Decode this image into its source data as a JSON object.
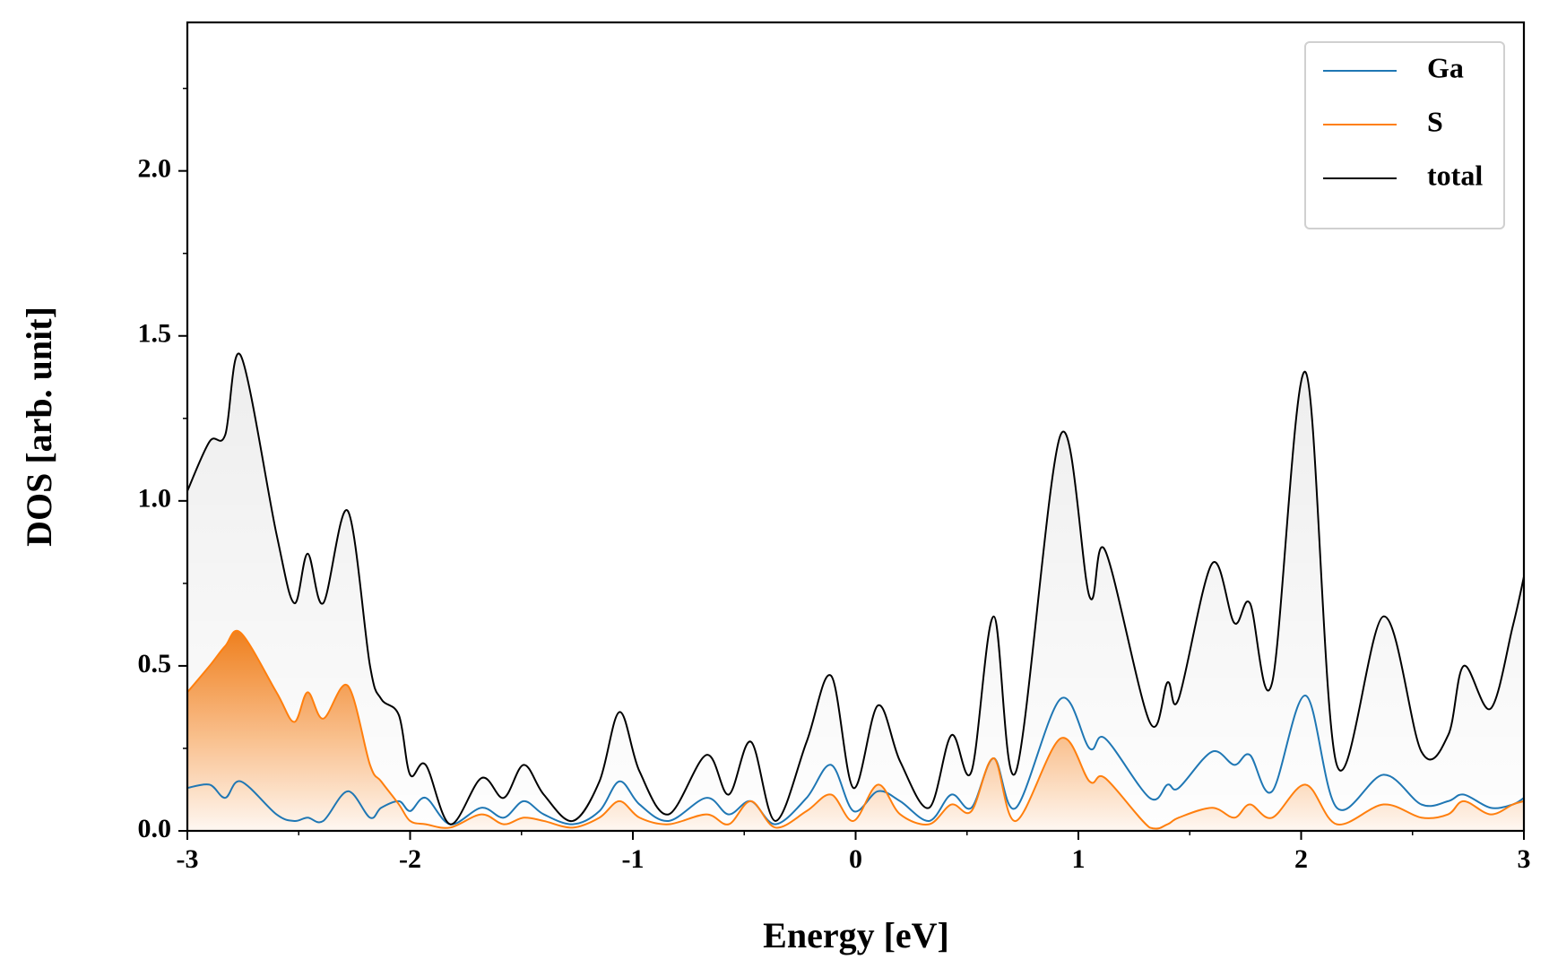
{
  "chart_data": {
    "type": "line",
    "x_label": "Energy [eV]",
    "y_label": "DOS [arb. unit]",
    "x": [
      -3,
      -2.9,
      -2.83,
      -2.76,
      -2.6,
      -2.52,
      -2.46,
      -2.39,
      -2.28,
      -2.18,
      -2.13,
      -2.05,
      -2.0,
      -1.93,
      -1.82,
      -1.68,
      -1.58,
      -1.49,
      -1.4,
      -1.27,
      -1.15,
      -1.06,
      -0.97,
      -0.84,
      -0.67,
      -0.57,
      -0.47,
      -0.36,
      -0.22,
      -0.11,
      -0.01,
      0.1,
      0.2,
      0.33,
      0.43,
      0.52,
      0.62,
      0.72,
      0.92,
      1.05,
      1.12,
      1.32,
      1.4,
      1.45,
      1.6,
      1.7,
      1.77,
      1.87,
      2.02,
      2.16,
      2.37,
      2.54,
      2.66,
      2.73,
      2.85,
      2.95,
      3
    ],
    "series": [
      {
        "name": "Ga",
        "color": "#1f77b4",
        "fill": false,
        "values": [
          0.13,
          0.14,
          0.1,
          0.15,
          0.05,
          0.03,
          0.04,
          0.03,
          0.12,
          0.04,
          0.07,
          0.09,
          0.06,
          0.1,
          0.02,
          0.07,
          0.04,
          0.09,
          0.05,
          0.02,
          0.06,
          0.15,
          0.08,
          0.03,
          0.1,
          0.05,
          0.09,
          0.02,
          0.1,
          0.2,
          0.06,
          0.12,
          0.09,
          0.03,
          0.11,
          0.07,
          0.22,
          0.07,
          0.4,
          0.25,
          0.28,
          0.1,
          0.14,
          0.13,
          0.24,
          0.2,
          0.23,
          0.12,
          0.41,
          0.07,
          0.17,
          0.08,
          0.09,
          0.11,
          0.07,
          0.08,
          0.1
        ]
      },
      {
        "name": "S",
        "color": "#ff7f0e",
        "fill": true,
        "values": [
          0.42,
          0.5,
          0.56,
          0.6,
          0.42,
          0.33,
          0.42,
          0.34,
          0.44,
          0.2,
          0.15,
          0.08,
          0.03,
          0.02,
          0.01,
          0.05,
          0.02,
          0.04,
          0.03,
          0.01,
          0.04,
          0.09,
          0.04,
          0.02,
          0.05,
          0.02,
          0.09,
          0.01,
          0.06,
          0.11,
          0.03,
          0.14,
          0.05,
          0.02,
          0.08,
          0.06,
          0.22,
          0.03,
          0.28,
          0.15,
          0.16,
          0.01,
          0.02,
          0.04,
          0.07,
          0.04,
          0.08,
          0.04,
          0.14,
          0.02,
          0.08,
          0.04,
          0.05,
          0.09,
          0.05,
          0.08,
          0.09
        ]
      },
      {
        "name": "total",
        "color": "#000000",
        "fill": true,
        "values": [
          1.03,
          1.18,
          1.2,
          1.44,
          0.9,
          0.69,
          0.84,
          0.69,
          0.97,
          0.5,
          0.4,
          0.35,
          0.17,
          0.2,
          0.02,
          0.16,
          0.1,
          0.2,
          0.11,
          0.03,
          0.15,
          0.36,
          0.18,
          0.05,
          0.23,
          0.11,
          0.27,
          0.03,
          0.27,
          0.47,
          0.13,
          0.38,
          0.21,
          0.07,
          0.29,
          0.18,
          0.65,
          0.18,
          1.2,
          0.71,
          0.85,
          0.33,
          0.45,
          0.4,
          0.81,
          0.63,
          0.69,
          0.45,
          1.39,
          0.2,
          0.65,
          0.24,
          0.29,
          0.5,
          0.37,
          0.62,
          0.77
        ]
      }
    ],
    "xlim": [
      -3,
      3
    ],
    "ylim": [
      0,
      2.45
    ],
    "xticks": [
      -3,
      -2,
      -1,
      0,
      1,
      2,
      3
    ],
    "x_minor_ticks": [
      -2.5,
      -1.5,
      -0.5,
      0.5,
      1.5,
      2.5
    ],
    "yticks": [
      {
        "value": 0,
        "label": "0.0"
      },
      0.5,
      {
        "value": 1,
        "label": "1.0"
      },
      1.5,
      {
        "value": 2,
        "label": "2.0"
      }
    ],
    "y_minor_ticks": [
      0.25,
      0.75,
      1.25,
      1.75,
      2.25
    ],
    "legend": "upper right",
    "grid": false
  }
}
